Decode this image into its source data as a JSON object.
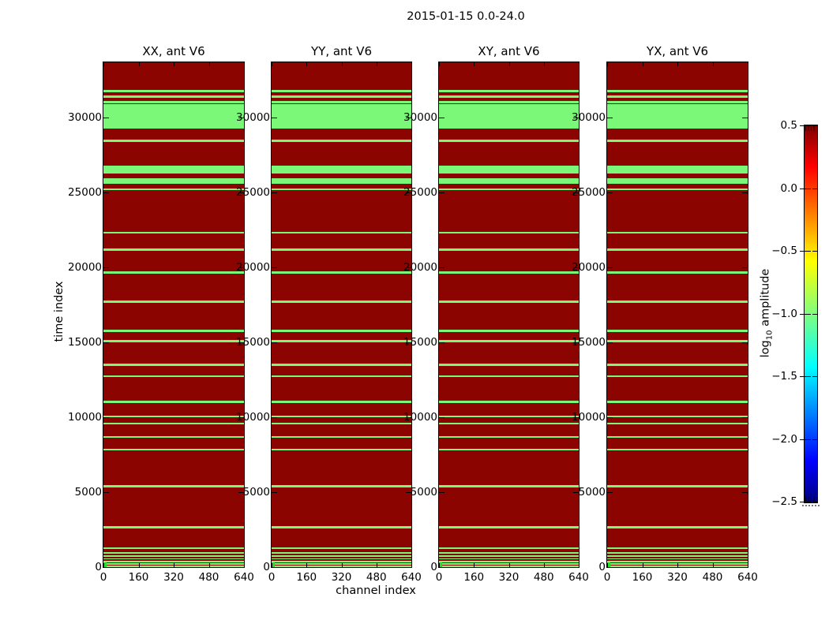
{
  "figure": {
    "suptitle": "2015-01-15 0.0-24.0",
    "xlabel": "channel index",
    "ylabel": "time index"
  },
  "colorbar": {
    "label_log": "log",
    "label_sub": "10",
    "label_rest": " amplitude",
    "vmin": -2.5,
    "vmax": 0.5,
    "colormap": "jet",
    "ticks": [
      {
        "v": 0.5,
        "label": "0.5"
      },
      {
        "v": 0.0,
        "label": "0.0"
      },
      {
        "v": -0.5,
        "label": "−0.5"
      },
      {
        "v": -1.0,
        "label": "−1.0"
      },
      {
        "v": -1.5,
        "label": "−1.5"
      },
      {
        "v": -2.0,
        "label": "−2.0"
      },
      {
        "v": -2.5,
        "label": "−2.5"
      }
    ]
  },
  "chart_data": {
    "type": "heatmap",
    "title": "2015-01-15 0.0-24.0",
    "xlabel": "channel index",
    "ylabel": "time index",
    "colorbar_label": "log10 amplitude",
    "colorbar_range": [
      -2.5,
      0.5
    ],
    "panels": [
      {
        "title": "XX, ant V6"
      },
      {
        "title": "YY, ant V6"
      },
      {
        "title": "XY, ant V6"
      },
      {
        "title": "YX, ant V6"
      }
    ],
    "xlim": [
      0,
      640
    ],
    "ylim": [
      0,
      33700
    ],
    "x_ticks": [
      0,
      160,
      320,
      480,
      640
    ],
    "y_ticks": [
      0,
      5000,
      10000,
      15000,
      20000,
      25000,
      30000
    ],
    "colors": {
      "high_amplitude": "#8b0400",
      "low_amplitude_stripe": "#7bf878",
      "corner_marker": "#28dd28"
    },
    "green_time_bands": [
      [
        31700,
        31850
      ],
      [
        31330,
        31480
      ],
      [
        30980,
        31110
      ],
      [
        29300,
        30900
      ],
      [
        28400,
        28560
      ],
      [
        26290,
        26780
      ],
      [
        25600,
        25940
      ],
      [
        25150,
        25300
      ],
      [
        22250,
        22390
      ],
      [
        21090,
        21270
      ],
      [
        19600,
        19740
      ],
      [
        17650,
        17800
      ],
      [
        15690,
        15830
      ],
      [
        15010,
        15150
      ],
      [
        13440,
        13580
      ],
      [
        12680,
        12820
      ],
      [
        10970,
        11100
      ],
      [
        9990,
        10110
      ],
      [
        9530,
        9660
      ],
      [
        8610,
        8740
      ],
      [
        7790,
        7920
      ],
      [
        5340,
        5470
      ],
      [
        2600,
        2730
      ],
      [
        1230,
        1340
      ],
      [
        910,
        1020
      ],
      [
        690,
        790
      ],
      [
        500,
        600
      ],
      [
        320,
        420
      ],
      [
        140,
        240
      ],
      [
        0,
        80
      ]
    ],
    "corner_marker_region": {
      "channels": [
        0,
        16
      ],
      "times": [
        0,
        280
      ]
    }
  }
}
